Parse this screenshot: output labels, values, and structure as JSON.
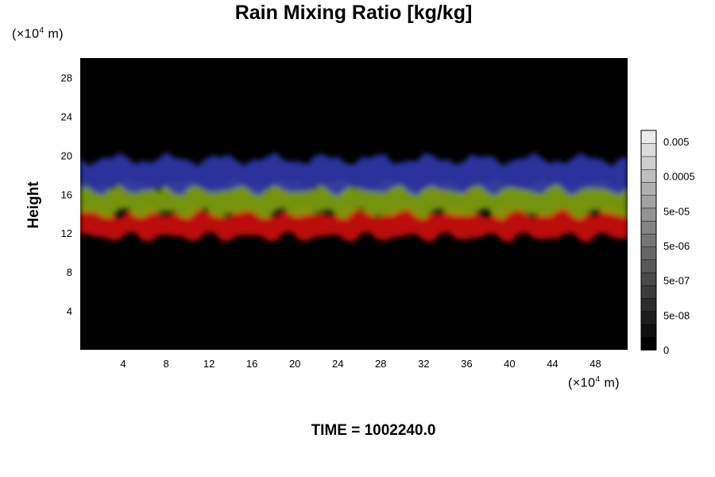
{
  "chart_data": {
    "type": "heatmap",
    "title": "Rain Mixing Ratio [kg/kg]",
    "ylabel": "Height",
    "xlabel": "",
    "x_unit_prefix": "(×10",
    "x_unit_exp": "4",
    "x_unit_suffix": " m)",
    "y_unit_prefix": "(×10",
    "y_unit_exp": "4",
    "y_unit_suffix": " m)",
    "xlim": [
      0,
      51
    ],
    "ylim": [
      0,
      30
    ],
    "x_ticks": [
      4,
      8,
      12,
      16,
      20,
      24,
      28,
      32,
      36,
      40,
      44,
      48
    ],
    "y_ticks": [
      4,
      8,
      12,
      16,
      20,
      24,
      28
    ],
    "background_color": "#000000",
    "bands": [
      {
        "color": "#cc1010",
        "bottom": 11.6,
        "top": 14.2
      },
      {
        "color": "#7fa010",
        "bottom": 14.0,
        "top": 17.0
      },
      {
        "color": "#2a36a8",
        "bottom": 16.4,
        "top": 19.6
      }
    ],
    "colorbar": {
      "tick_labels": [
        "0.005",
        "0.0005",
        "5e-05",
        "5e-06",
        "5e-07",
        "5e-08",
        "0"
      ],
      "levels": 17
    }
  },
  "footer": {
    "time_label": "TIME = 1002240.0"
  }
}
